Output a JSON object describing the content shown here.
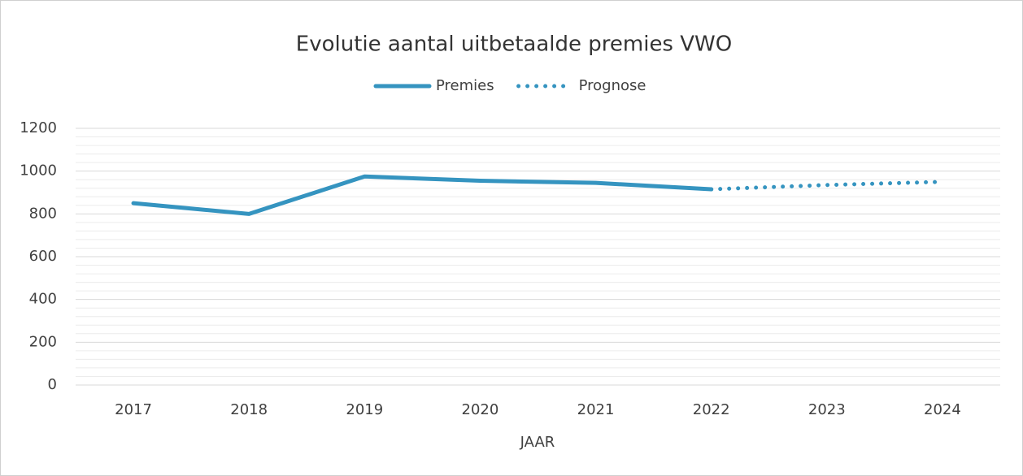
{
  "chart_data": {
    "type": "line",
    "title": "Evolutie aantal uitbetaalde premies VWO",
    "x_label": "JAAR",
    "categories": [
      "2017",
      "2018",
      "2019",
      "2020",
      "2021",
      "2022",
      "2023",
      "2024"
    ],
    "series": [
      {
        "name": "Premies",
        "color": "#3594c0",
        "style": "solid",
        "values": [
          850,
          800,
          975,
          955,
          945,
          915,
          null,
          null
        ]
      },
      {
        "name": "Prognose",
        "color": "#3594c0",
        "style": "dotted",
        "values": [
          null,
          null,
          null,
          null,
          null,
          915,
          935,
          950
        ]
      }
    ],
    "ylim": [
      0,
      1200
    ],
    "yticks": [
      0,
      200,
      400,
      600,
      800,
      1000,
      1200
    ],
    "grid": true,
    "minor_grid": true,
    "legend": "top"
  }
}
